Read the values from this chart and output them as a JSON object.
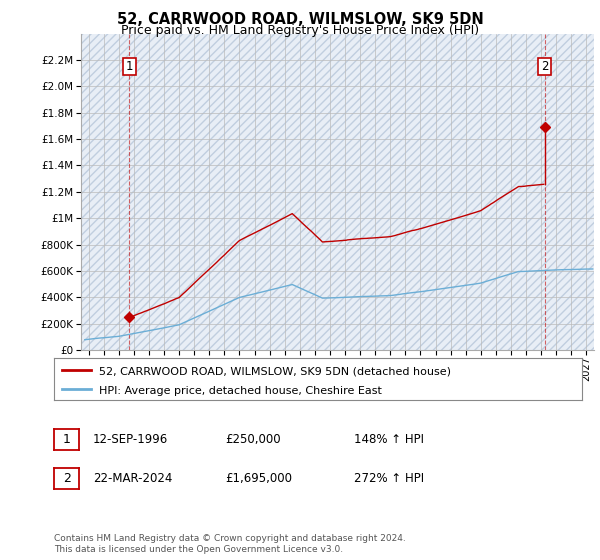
{
  "title": "52, CARRWOOD ROAD, WILMSLOW, SK9 5DN",
  "subtitle": "Price paid vs. HM Land Registry's House Price Index (HPI)",
  "hpi_label": "HPI: Average price, detached house, Cheshire East",
  "property_label": "52, CARRWOOD ROAD, WILMSLOW, SK9 5DN (detached house)",
  "sale1_num": "1",
  "sale1_date": "12-SEP-1996",
  "sale1_price": 250000,
  "sale1_price_str": "£250,000",
  "sale1_hpi_str": "148% ↑ HPI",
  "sale1_year": 1996.71,
  "sale2_num": "2",
  "sale2_date": "22-MAR-2024",
  "sale2_price": 1695000,
  "sale2_price_str": "£1,695,000",
  "sale2_hpi_str": "272% ↑ HPI",
  "sale2_year": 2024.22,
  "ylim_min": 0,
  "ylim_max": 2400000,
  "xlim_min": 1993.5,
  "xlim_max": 2027.5,
  "hpi_color": "#6BAED6",
  "property_color": "#C00000",
  "bg_fill": "#E8EEF6",
  "grid_color": "#BBBBBB",
  "title_fontsize": 10.5,
  "subtitle_fontsize": 9,
  "tick_fontsize": 7.5,
  "legend_fontsize": 8,
  "table_fontsize": 8.5,
  "footer_fontsize": 6.5,
  "footer_text": "Contains HM Land Registry data © Crown copyright and database right 2024.\nThis data is licensed under the Open Government Licence v3.0."
}
